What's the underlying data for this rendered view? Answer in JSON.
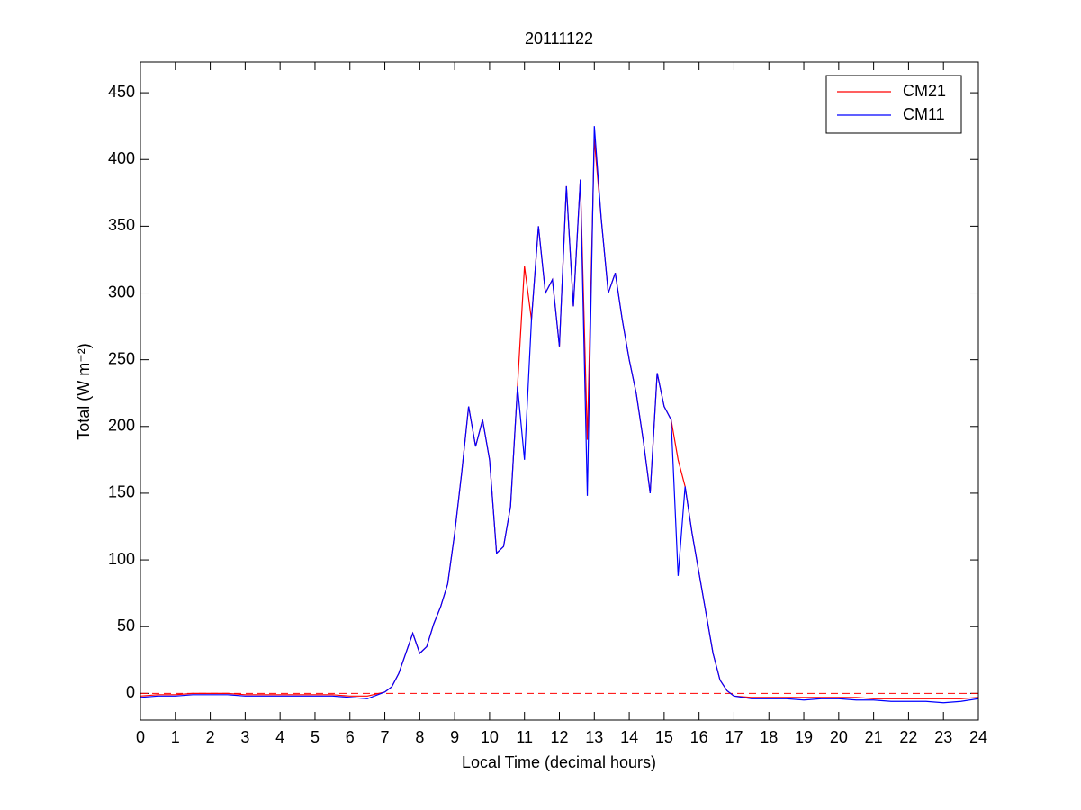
{
  "chart_data": {
    "type": "line",
    "title": "20111122",
    "xlabel": "Local Time (decimal hours)",
    "ylabel": "Total (W m⁻²)",
    "x": [
      0,
      0.5,
      1,
      1.5,
      2,
      2.5,
      3,
      3.5,
      4,
      4.5,
      5,
      5.5,
      6,
      6.5,
      7,
      7.2,
      7.4,
      7.6,
      7.8,
      8,
      8.2,
      8.4,
      8.6,
      8.8,
      9,
      9.2,
      9.4,
      9.6,
      9.8,
      10,
      10.2,
      10.4,
      10.6,
      10.8,
      11,
      11.2,
      11.4,
      11.6,
      11.8,
      12,
      12.2,
      12.4,
      12.6,
      12.8,
      13,
      13.2,
      13.4,
      13.6,
      13.8,
      14,
      14.2,
      14.4,
      14.6,
      14.8,
      15,
      15.2,
      15.4,
      15.6,
      15.8,
      16,
      16.2,
      16.4,
      16.6,
      16.8,
      17,
      17.5,
      18,
      18.5,
      19,
      19.5,
      20,
      20.5,
      21,
      21.5,
      22,
      22.5,
      23,
      23.5,
      24
    ],
    "series": [
      {
        "name": "CM21",
        "color": "#ff0000",
        "values": [
          -2,
          -1,
          -1,
          0,
          0,
          0,
          -1,
          -1,
          -1,
          -1,
          -1,
          -1,
          -2,
          -2,
          1,
          5,
          15,
          30,
          45,
          30,
          35,
          52,
          65,
          82,
          120,
          165,
          215,
          185,
          205,
          175,
          105,
          110,
          140,
          230,
          320,
          280,
          350,
          300,
          310,
          260,
          380,
          290,
          385,
          190,
          415,
          355,
          300,
          315,
          280,
          250,
          225,
          190,
          150,
          240,
          215,
          205,
          175,
          155,
          120,
          90,
          60,
          30,
          10,
          2,
          -2,
          -3,
          -3,
          -3,
          -3,
          -3,
          -3,
          -3,
          -4,
          -4,
          -4,
          -4,
          -4,
          -4,
          -3
        ]
      },
      {
        "name": "CM11",
        "color": "#0000ff",
        "values": [
          -3,
          -2,
          -2,
          -1,
          -1,
          -1,
          -2,
          -2,
          -2,
          -2,
          -2,
          -2,
          -3,
          -4,
          1,
          5,
          15,
          30,
          45,
          30,
          35,
          52,
          65,
          82,
          120,
          165,
          215,
          185,
          205,
          175,
          105,
          110,
          140,
          230,
          175,
          280,
          350,
          300,
          310,
          260,
          380,
          290,
          385,
          148,
          425,
          355,
          300,
          315,
          280,
          250,
          225,
          190,
          150,
          240,
          215,
          205,
          88,
          155,
          120,
          90,
          60,
          30,
          10,
          2,
          -2,
          -4,
          -4,
          -4,
          -5,
          -4,
          -4,
          -5,
          -5,
          -6,
          -6,
          -6,
          -7,
          -6,
          -4
        ]
      }
    ],
    "reference_line": {
      "value": 0,
      "color": "#ff0000",
      "style": "dashed"
    },
    "xlim": [
      0,
      24
    ],
    "xticks": [
      0,
      1,
      2,
      3,
      4,
      5,
      6,
      7,
      8,
      9,
      10,
      11,
      12,
      13,
      14,
      15,
      16,
      17,
      18,
      19,
      20,
      21,
      22,
      23,
      24
    ],
    "ylim": [
      -20,
      473
    ],
    "yticks": [
      0,
      50,
      100,
      150,
      200,
      250,
      300,
      350,
      400,
      450
    ],
    "legend": "upper right"
  }
}
